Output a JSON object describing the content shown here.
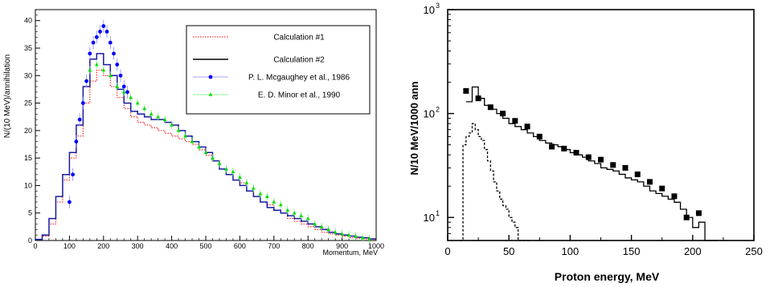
{
  "chart_data": [
    {
      "type": "line",
      "xlabel": "Momentum, MeV",
      "ylabel": "N/(10 MeV)/annihilation",
      "xlim": [
        0,
        1000
      ],
      "ylim": [
        0,
        42
      ],
      "xticks": [
        0,
        100,
        200,
        300,
        400,
        500,
        600,
        700,
        800,
        900,
        1000
      ],
      "yticks": [
        0,
        5,
        10,
        15,
        20,
        25,
        30,
        35,
        40
      ],
      "grid": false,
      "legend_position": "top-right",
      "series": [
        {
          "name": "Calculation #1",
          "style": "step-dotted",
          "color": "#ff0000",
          "x": [
            0,
            20,
            40,
            60,
            80,
            100,
            120,
            140,
            160,
            180,
            200,
            220,
            240,
            260,
            280,
            300,
            320,
            340,
            360,
            380,
            400,
            420,
            440,
            460,
            480,
            500,
            520,
            540,
            560,
            580,
            600,
            620,
            640,
            660,
            680,
            700,
            720,
            740,
            760,
            780,
            800,
            820,
            840,
            860,
            880,
            900,
            920,
            940,
            960,
            980
          ],
          "y": [
            0.2,
            0.8,
            3,
            7,
            11,
            15,
            19,
            25,
            29,
            31,
            30,
            28,
            26,
            24,
            22.5,
            21.5,
            21,
            20.5,
            20,
            19.5,
            19,
            18.5,
            18,
            17.5,
            16.5,
            15.5,
            14.5,
            13,
            12,
            11,
            10.5,
            9,
            8,
            7,
            6.5,
            5.5,
            5,
            4,
            3.5,
            3,
            2.5,
            2,
            1.5,
            1.2,
            1,
            0.8,
            0.5,
            0.4,
            0.3,
            0.2
          ]
        },
        {
          "name": "Calculation #2",
          "style": "step-solid",
          "color": "#000000",
          "x": [
            0,
            20,
            40,
            60,
            80,
            100,
            120,
            140,
            160,
            180,
            200,
            220,
            240,
            260,
            280,
            300,
            320,
            340,
            360,
            380,
            400,
            420,
            440,
            460,
            480,
            500,
            520,
            540,
            560,
            580,
            600,
            620,
            640,
            660,
            680,
            700,
            720,
            740,
            760,
            780,
            800,
            820,
            840,
            860,
            880,
            900,
            920,
            940,
            960,
            980
          ],
          "y": [
            0.2,
            1,
            4,
            8,
            12,
            16,
            21,
            28,
            33,
            34,
            32,
            30,
            27.5,
            25,
            23.5,
            23,
            22.5,
            22,
            22,
            21.5,
            21,
            20,
            19,
            18,
            17,
            16,
            14.5,
            13,
            12,
            11,
            10,
            9,
            8,
            7,
            6,
            5.5,
            5,
            4.5,
            4,
            3.5,
            3,
            2.5,
            2,
            1.5,
            1.2,
            1,
            0.8,
            0.6,
            0.5,
            0.3
          ]
        },
        {
          "name": "P. L. Mcgaughey et al., 1986",
          "style": "markers-circle",
          "color": "#0000ff",
          "x": [
            100,
            110,
            120,
            130,
            140,
            150,
            160,
            170,
            180,
            190,
            200,
            210,
            220,
            230,
            240,
            250,
            260,
            270
          ],
          "y": [
            7,
            12,
            18,
            22,
            25,
            29,
            34,
            36,
            37,
            38,
            39,
            38,
            36,
            34,
            32,
            30,
            28,
            27
          ]
        },
        {
          "name": "E. D. Minor et al., 1990",
          "style": "markers-triangle",
          "color": "#00dd00",
          "x": [
            160,
            180,
            200,
            220,
            240,
            260,
            280,
            300,
            320,
            340,
            360,
            380,
            400,
            420,
            440,
            460,
            480,
            500,
            520,
            540,
            560,
            580,
            600,
            620,
            640,
            660,
            680,
            700,
            720,
            740,
            760,
            780,
            800,
            820,
            840,
            860,
            880,
            900,
            920,
            940,
            960,
            980
          ],
          "y": [
            31,
            32,
            31,
            30,
            28,
            27,
            26,
            25,
            24,
            23,
            22.5,
            22,
            21,
            20,
            19,
            18,
            17,
            16,
            15,
            14,
            13,
            12.5,
            11.5,
            10.5,
            9.5,
            8.5,
            8,
            7,
            6.5,
            5.5,
            5,
            4.5,
            4,
            3,
            2.5,
            2,
            1.5,
            1.2,
            1,
            0.8,
            0.5,
            0.3
          ]
        }
      ]
    },
    {
      "type": "line",
      "xlabel": "Proton energy, MeV",
      "ylabel": "N/10 MeV/1000 ann",
      "xlim": [
        0,
        250
      ],
      "ylim": [
        6,
        1000
      ],
      "yscale": "log",
      "xticks": [
        0,
        50,
        100,
        150,
        200,
        250
      ],
      "yticks": [
        10,
        100,
        1000
      ],
      "ytick_labels": [
        "10",
        "10",
        "10"
      ],
      "ytick_exponents": [
        "1",
        "2",
        "3"
      ],
      "grid": false,
      "series": [
        {
          "style": "step-solid",
          "color": "#000000",
          "x": [
            15,
            20,
            25,
            30,
            35,
            40,
            45,
            50,
            55,
            60,
            65,
            70,
            75,
            80,
            85,
            90,
            95,
            100,
            105,
            110,
            115,
            120,
            125,
            130,
            135,
            140,
            145,
            150,
            155,
            160,
            165,
            170,
            175,
            180,
            185,
            190,
            195,
            200,
            205,
            210,
            215
          ],
          "y": [
            130,
            180,
            140,
            120,
            110,
            100,
            90,
            80,
            75,
            70,
            65,
            60,
            55,
            52,
            50,
            48,
            45,
            42,
            40,
            38,
            35,
            33,
            30,
            29,
            28,
            26,
            24,
            23,
            22,
            20,
            18,
            17,
            16,
            15,
            14,
            12,
            10,
            8,
            9,
            6,
            6
          ]
        },
        {
          "style": "step-dashed",
          "color": "#000000",
          "x": [
            10,
            12.5,
            15,
            17.5,
            20,
            22.5,
            25,
            27.5,
            30,
            32.5,
            35,
            37.5,
            40,
            42.5,
            45,
            47.5,
            50,
            52.5,
            55,
            57.5,
            60,
            62.5,
            65
          ],
          "y": [
            6,
            50,
            60,
            65,
            80,
            70,
            60,
            55,
            45,
            35,
            28,
            22,
            18,
            15,
            13,
            12,
            10,
            9,
            8,
            6,
            6,
            6,
            6
          ]
        },
        {
          "style": "markers-square",
          "color": "#000000",
          "x": [
            15,
            25,
            35,
            45,
            55,
            65,
            75,
            85,
            95,
            105,
            115,
            125,
            135,
            145,
            155,
            165,
            175,
            185,
            195,
            205
          ],
          "y": [
            165,
            140,
            115,
            100,
            85,
            75,
            60,
            48,
            46,
            42,
            38,
            36,
            32,
            30,
            26,
            22,
            19,
            16,
            10,
            11
          ]
        }
      ]
    }
  ]
}
